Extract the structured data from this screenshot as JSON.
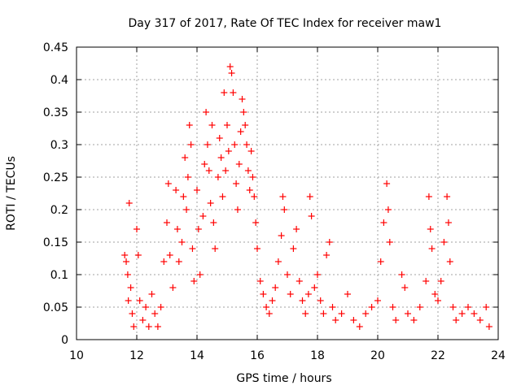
{
  "chart_data": {
    "type": "scatter",
    "title": "Day 317 of 2017, Rate Of TEC Index for receiver maw1",
    "xlabel": "GPS time / hours",
    "ylabel": "ROTI / TECUs",
    "xlim": [
      10,
      24
    ],
    "ylim": [
      0,
      0.45
    ],
    "x_ticks": [
      10,
      12,
      14,
      16,
      18,
      20,
      22,
      24
    ],
    "y_ticks": [
      0,
      0.05,
      0.1,
      0.15,
      0.2,
      0.25,
      0.3,
      0.35,
      0.4,
      0.45
    ],
    "x_tick_labels": [
      "10",
      "12",
      "14",
      "16",
      "18",
      "20",
      "22",
      "24"
    ],
    "y_tick_labels": [
      "0",
      "0.05",
      "0.1",
      "0.15",
      "0.2",
      "0.25",
      "0.3",
      "0.35",
      "0.4",
      "0.45"
    ],
    "grid": true,
    "marker": "+",
    "color": "#ff0000",
    "series": [
      {
        "values": [
          [
            11.6,
            0.13
          ],
          [
            11.65,
            0.12
          ],
          [
            11.7,
            0.1
          ],
          [
            11.72,
            0.06
          ],
          [
            11.75,
            0.21
          ],
          [
            11.8,
            0.08
          ],
          [
            11.85,
            0.04
          ],
          [
            11.9,
            0.02
          ],
          [
            12.0,
            0.17
          ],
          [
            12.05,
            0.13
          ],
          [
            12.1,
            0.06
          ],
          [
            12.2,
            0.03
          ],
          [
            12.3,
            0.05
          ],
          [
            12.4,
            0.02
          ],
          [
            12.5,
            0.07
          ],
          [
            12.6,
            0.04
          ],
          [
            12.7,
            0.02
          ],
          [
            12.8,
            0.05
          ],
          [
            12.9,
            0.12
          ],
          [
            13.0,
            0.18
          ],
          [
            13.05,
            0.24
          ],
          [
            13.1,
            0.13
          ],
          [
            13.2,
            0.08
          ],
          [
            13.3,
            0.23
          ],
          [
            13.35,
            0.17
          ],
          [
            13.4,
            0.12
          ],
          [
            13.5,
            0.15
          ],
          [
            13.55,
            0.22
          ],
          [
            13.6,
            0.28
          ],
          [
            13.65,
            0.2
          ],
          [
            13.7,
            0.25
          ],
          [
            13.75,
            0.33
          ],
          [
            13.8,
            0.3
          ],
          [
            13.85,
            0.14
          ],
          [
            13.9,
            0.09
          ],
          [
            14.0,
            0.23
          ],
          [
            14.05,
            0.17
          ],
          [
            14.1,
            0.1
          ],
          [
            14.2,
            0.19
          ],
          [
            14.25,
            0.27
          ],
          [
            14.3,
            0.35
          ],
          [
            14.35,
            0.3
          ],
          [
            14.4,
            0.26
          ],
          [
            14.45,
            0.21
          ],
          [
            14.5,
            0.33
          ],
          [
            14.55,
            0.18
          ],
          [
            14.6,
            0.14
          ],
          [
            14.7,
            0.25
          ],
          [
            14.75,
            0.31
          ],
          [
            14.8,
            0.28
          ],
          [
            14.85,
            0.22
          ],
          [
            14.9,
            0.38
          ],
          [
            14.95,
            0.26
          ],
          [
            15.0,
            0.33
          ],
          [
            15.05,
            0.29
          ],
          [
            15.1,
            0.42
          ],
          [
            15.15,
            0.41
          ],
          [
            15.2,
            0.38
          ],
          [
            15.25,
            0.3
          ],
          [
            15.3,
            0.24
          ],
          [
            15.35,
            0.2
          ],
          [
            15.4,
            0.27
          ],
          [
            15.45,
            0.32
          ],
          [
            15.5,
            0.37
          ],
          [
            15.55,
            0.35
          ],
          [
            15.6,
            0.33
          ],
          [
            15.65,
            0.3
          ],
          [
            15.7,
            0.26
          ],
          [
            15.75,
            0.23
          ],
          [
            15.8,
            0.29
          ],
          [
            15.85,
            0.25
          ],
          [
            15.9,
            0.22
          ],
          [
            15.95,
            0.18
          ],
          [
            16.0,
            0.14
          ],
          [
            16.1,
            0.09
          ],
          [
            16.2,
            0.07
          ],
          [
            16.3,
            0.05
          ],
          [
            16.4,
            0.04
          ],
          [
            16.5,
            0.06
          ],
          [
            16.6,
            0.08
          ],
          [
            16.7,
            0.12
          ],
          [
            16.8,
            0.16
          ],
          [
            16.85,
            0.22
          ],
          [
            16.9,
            0.2
          ],
          [
            17.0,
            0.1
          ],
          [
            17.1,
            0.07
          ],
          [
            17.2,
            0.14
          ],
          [
            17.3,
            0.17
          ],
          [
            17.4,
            0.09
          ],
          [
            17.5,
            0.06
          ],
          [
            17.6,
            0.04
          ],
          [
            17.7,
            0.07
          ],
          [
            17.75,
            0.22
          ],
          [
            17.8,
            0.19
          ],
          [
            17.9,
            0.08
          ],
          [
            18.0,
            0.1
          ],
          [
            18.1,
            0.06
          ],
          [
            18.2,
            0.04
          ],
          [
            18.3,
            0.13
          ],
          [
            18.4,
            0.15
          ],
          [
            18.5,
            0.05
          ],
          [
            18.6,
            0.03
          ],
          [
            18.8,
            0.04
          ],
          [
            19.0,
            0.07
          ],
          [
            19.2,
            0.03
          ],
          [
            19.4,
            0.02
          ],
          [
            19.6,
            0.04
          ],
          [
            19.8,
            0.05
          ],
          [
            20.0,
            0.06
          ],
          [
            20.1,
            0.12
          ],
          [
            20.2,
            0.18
          ],
          [
            20.3,
            0.24
          ],
          [
            20.35,
            0.2
          ],
          [
            20.4,
            0.15
          ],
          [
            20.5,
            0.05
          ],
          [
            20.6,
            0.03
          ],
          [
            20.8,
            0.1
          ],
          [
            20.9,
            0.08
          ],
          [
            21.0,
            0.04
          ],
          [
            21.2,
            0.03
          ],
          [
            21.4,
            0.05
          ],
          [
            21.6,
            0.09
          ],
          [
            21.7,
            0.22
          ],
          [
            21.75,
            0.17
          ],
          [
            21.8,
            0.14
          ],
          [
            21.9,
            0.07
          ],
          [
            22.0,
            0.06
          ],
          [
            22.1,
            0.09
          ],
          [
            22.2,
            0.15
          ],
          [
            22.3,
            0.22
          ],
          [
            22.35,
            0.18
          ],
          [
            22.4,
            0.12
          ],
          [
            22.5,
            0.05
          ],
          [
            22.6,
            0.03
          ],
          [
            22.8,
            0.04
          ],
          [
            23.0,
            0.05
          ],
          [
            23.2,
            0.04
          ],
          [
            23.4,
            0.03
          ],
          [
            23.6,
            0.05
          ],
          [
            23.7,
            0.02
          ]
        ]
      }
    ]
  }
}
